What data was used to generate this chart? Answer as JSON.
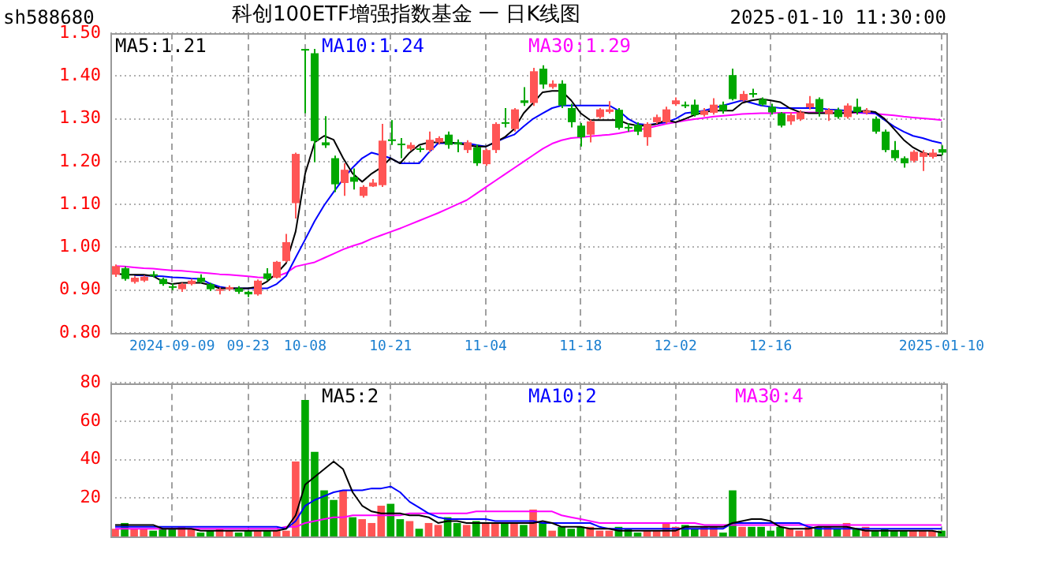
{
  "chart_data": [
    {
      "type": "candlestick",
      "title": "科创100ETF增强指数基金 一 日K线图",
      "subtitle": "2025-01-10 11:30:00",
      "annotations": [
        "sh588680"
      ],
      "categories": [
        null,
        null,
        null,
        null,
        null,
        null,
        "2024-09-09",
        null,
        null,
        null,
        null,
        null,
        null,
        null,
        "09-23",
        null,
        null,
        null,
        null,
        null,
        "10-08",
        null,
        null,
        null,
        null,
        null,
        null,
        null,
        null,
        "10-21",
        null,
        null,
        null,
        null,
        null,
        null,
        null,
        null,
        null,
        "11-04",
        null,
        null,
        null,
        null,
        null,
        null,
        null,
        null,
        null,
        "11-18",
        null,
        null,
        null,
        null,
        null,
        null,
        null,
        null,
        null,
        "12-02",
        null,
        null,
        null,
        null,
        null,
        null,
        null,
        null,
        null,
        "12-16",
        null,
        null,
        null,
        null,
        null,
        null,
        null,
        null,
        null,
        null,
        null,
        null,
        null,
        null,
        null,
        null,
        null,
        "2025-01-10"
      ],
      "ohlc": [
        [
          0.936,
          0.96,
          0.931,
          0.956
        ],
        [
          0.951,
          0.955,
          0.922,
          0.926
        ],
        [
          0.919,
          0.932,
          0.915,
          0.929
        ],
        [
          0.922,
          0.934,
          0.919,
          0.931
        ],
        [
          0.937,
          0.944,
          0.93,
          0.936
        ],
        [
          0.926,
          0.929,
          0.91,
          0.914
        ],
        [
          0.909,
          0.915,
          0.9,
          0.908
        ],
        [
          0.902,
          0.917,
          0.896,
          0.914
        ],
        [
          0.914,
          0.926,
          0.911,
          0.922
        ],
        [
          0.929,
          0.937,
          0.916,
          0.919
        ],
        [
          0.914,
          0.917,
          0.898,
          0.902
        ],
        [
          0.9,
          0.906,
          0.89,
          0.902
        ],
        [
          0.902,
          0.911,
          0.898,
          0.907
        ],
        [
          0.904,
          0.909,
          0.891,
          0.896
        ],
        [
          0.896,
          0.898,
          0.884,
          0.89
        ],
        [
          0.89,
          0.925,
          0.887,
          0.922
        ],
        [
          0.939,
          0.951,
          0.922,
          0.926
        ],
        [
          0.929,
          0.968,
          0.927,
          0.966
        ],
        [
          0.968,
          1.031,
          0.965,
          1.012
        ],
        [
          1.103,
          1.221,
          1.067,
          1.218
        ],
        [
          1.463,
          1.463,
          1.313,
          1.462
        ],
        [
          1.453,
          1.463,
          1.199,
          1.248
        ],
        [
          1.245,
          1.306,
          1.232,
          1.238
        ],
        [
          1.208,
          1.214,
          1.129,
          1.147
        ],
        [
          1.15,
          1.196,
          1.12,
          1.181
        ],
        [
          1.164,
          1.184,
          1.135,
          1.153
        ],
        [
          1.12,
          1.145,
          1.116,
          1.141
        ],
        [
          1.142,
          1.159,
          1.141,
          1.151
        ],
        [
          1.145,
          1.288,
          1.141,
          1.249
        ],
        [
          1.252,
          1.297,
          1.239,
          1.248
        ],
        [
          1.242,
          1.255,
          1.208,
          1.239
        ],
        [
          1.23,
          1.245,
          1.226,
          1.239
        ],
        [
          1.231,
          1.236,
          1.222,
          1.228
        ],
        [
          1.227,
          1.27,
          1.222,
          1.251
        ],
        [
          1.245,
          1.259,
          1.24,
          1.255
        ],
        [
          1.263,
          1.27,
          1.23,
          1.239
        ],
        [
          1.245,
          1.252,
          1.222,
          1.24
        ],
        [
          1.227,
          1.25,
          1.22,
          1.245
        ],
        [
          1.233,
          1.24,
          1.19,
          1.196
        ],
        [
          1.194,
          1.23,
          1.19,
          1.227
        ],
        [
          1.227,
          1.292,
          1.22,
          1.288
        ],
        [
          1.292,
          1.325,
          1.28,
          1.289
        ],
        [
          1.276,
          1.325,
          1.27,
          1.322
        ],
        [
          1.343,
          1.374,
          1.33,
          1.337
        ],
        [
          1.337,
          1.419,
          1.33,
          1.411
        ],
        [
          1.417,
          1.425,
          1.37,
          1.38
        ],
        [
          1.374,
          1.39,
          1.37,
          1.382
        ],
        [
          1.382,
          1.39,
          1.325,
          1.331
        ],
        [
          1.325,
          1.335,
          1.28,
          1.292
        ],
        [
          1.284,
          1.29,
          1.235,
          1.257
        ],
        [
          1.263,
          1.298,
          1.245,
          1.294
        ],
        [
          1.304,
          1.325,
          1.3,
          1.322
        ],
        [
          1.316,
          1.341,
          1.312,
          1.322
        ],
        [
          1.321,
          1.325,
          1.275,
          1.279
        ],
        [
          1.281,
          1.29,
          1.27,
          1.279
        ],
        [
          1.286,
          1.292,
          1.262,
          1.27
        ],
        [
          1.257,
          1.292,
          1.237,
          1.288
        ],
        [
          1.292,
          1.31,
          1.288,
          1.304
        ],
        [
          1.292,
          1.328,
          1.288,
          1.322
        ],
        [
          1.334,
          1.35,
          1.33,
          1.343
        ],
        [
          1.333,
          1.34,
          1.325,
          1.331
        ],
        [
          1.333,
          1.345,
          1.305,
          1.309
        ],
        [
          1.309,
          1.325,
          1.305,
          1.319
        ],
        [
          1.314,
          1.348,
          1.31,
          1.333
        ],
        [
          1.333,
          1.34,
          1.312,
          1.319
        ],
        [
          1.402,
          1.417,
          1.343,
          1.346
        ],
        [
          1.343,
          1.365,
          1.34,
          1.358
        ],
        [
          1.36,
          1.37,
          1.35,
          1.357
        ],
        [
          1.346,
          1.35,
          1.33,
          1.333
        ],
        [
          1.328,
          1.335,
          1.31,
          1.315
        ],
        [
          1.313,
          1.316,
          1.28,
          1.284
        ],
        [
          1.294,
          1.315,
          1.286,
          1.309
        ],
        [
          1.299,
          1.32,
          1.295,
          1.315
        ],
        [
          1.327,
          1.353,
          1.322,
          1.336
        ],
        [
          1.346,
          1.35,
          1.305,
          1.316
        ],
        [
          1.311,
          1.325,
          1.295,
          1.321
        ],
        [
          1.321,
          1.326,
          1.3,
          1.304
        ],
        [
          1.304,
          1.336,
          1.3,
          1.331
        ],
        [
          1.328,
          1.347,
          1.31,
          1.316
        ],
        [
          1.314,
          1.325,
          1.31,
          1.319
        ],
        [
          1.3,
          1.305,
          1.265,
          1.27
        ],
        [
          1.27,
          1.275,
          1.222,
          1.227
        ],
        [
          1.227,
          1.248,
          1.202,
          1.208
        ],
        [
          1.208,
          1.212,
          1.186,
          1.196
        ],
        [
          1.202,
          1.227,
          1.198,
          1.223
        ],
        [
          1.211,
          1.227,
          1.178,
          1.221
        ],
        [
          1.211,
          1.229,
          1.207,
          1.221
        ],
        [
          1.229,
          1.238,
          1.215,
          1.221
        ]
      ],
      "colors": [
        "#ff5555",
        "#00a800",
        "#ff5555",
        "#ff5555",
        "#00a800",
        "#00a800",
        "#00a800",
        "#ff5555",
        "#ff5555",
        "#00a800",
        "#00a800",
        "#ff5555",
        "#ff5555",
        "#00a800",
        "#00a800",
        "#ff5555",
        "#00a800",
        "#ff5555",
        "#ff5555",
        "#ff5555",
        "#00a800",
        "#00a800",
        "#00a800",
        "#00a800",
        "#ff5555",
        "#00a800",
        "#ff5555",
        "#ff5555",
        "#ff5555",
        "#00a800",
        "#00a800",
        "#ff5555",
        "#00a800",
        "#ff5555",
        "#ff5555",
        "#00a800",
        "#00a800",
        "#ff5555",
        "#00a800",
        "#ff5555",
        "#ff5555",
        "#00a800",
        "#ff5555",
        "#00a800",
        "#ff5555",
        "#00a800",
        "#ff5555",
        "#00a800",
        "#00a800",
        "#00a800",
        "#ff5555",
        "#ff5555",
        "#ff5555",
        "#00a800",
        "#00a800",
        "#00a800",
        "#ff5555",
        "#ff5555",
        "#ff5555",
        "#ff5555",
        "#00a800",
        "#00a800",
        "#ff5555",
        "#ff5555",
        "#00a800",
        "#00a800",
        "#ff5555",
        "#00a800",
        "#00a800",
        "#00a800",
        "#00a800",
        "#ff5555",
        "#ff5555",
        "#ff5555",
        "#00a800",
        "#ff5555",
        "#00a800",
        "#ff5555",
        "#00a800",
        "#ff5555",
        "#00a800",
        "#00a800",
        "#00a800",
        "#00a800",
        "#ff5555",
        "#ff5555",
        "#ff5555",
        "#00a800"
      ],
      "series": [
        {
          "type": "line",
          "name": "MA5:1.21",
          "color": "#000000",
          "values": [
            0.939,
            0.936,
            0.936,
            0.936,
            0.933,
            0.92,
            0.914,
            0.917,
            0.917,
            0.917,
            0.912,
            0.904,
            0.904,
            0.904,
            0.904,
            0.908,
            0.92,
            0.939,
            0.963,
            1.037,
            1.172,
            1.245,
            1.26,
            1.251,
            1.208,
            1.172,
            1.153,
            1.172,
            1.186,
            1.208,
            1.196,
            1.221,
            1.239,
            1.245,
            1.245,
            1.245,
            1.243,
            1.239,
            1.235,
            1.235,
            1.245,
            1.257,
            1.276,
            1.313,
            1.337,
            1.362,
            1.365,
            1.365,
            1.343,
            1.313,
            1.297,
            1.297,
            1.297,
            1.297,
            1.288,
            1.284,
            1.284,
            1.288,
            1.297,
            1.292,
            1.3,
            1.309,
            1.316,
            1.319,
            1.319,
            1.319,
            1.337,
            1.343,
            1.346,
            1.343,
            1.339,
            1.325,
            1.316,
            1.313,
            1.313,
            1.313,
            1.313,
            1.313,
            1.316,
            1.319,
            1.316,
            1.3,
            1.276,
            1.251,
            1.233,
            1.221,
            1.215,
            1.215
          ]
        },
        {
          "type": "line",
          "name": "MA10:1.24",
          "color": "#0000ff",
          "values": [
            null,
            null,
            0.935,
            0.934,
            0.933,
            0.932,
            0.93,
            0.929,
            0.927,
            0.926,
            0.915,
            0.908,
            0.904,
            0.904,
            0.904,
            0.904,
            0.904,
            0.914,
            0.933,
            0.976,
            1.018,
            1.061,
            1.098,
            1.129,
            1.159,
            1.186,
            1.208,
            1.221,
            1.215,
            1.208,
            1.196,
            1.196,
            1.196,
            1.221,
            1.243,
            1.243,
            1.243,
            1.243,
            1.239,
            1.235,
            1.245,
            1.255,
            1.263,
            1.282,
            1.3,
            1.313,
            1.325,
            1.331,
            1.331,
            1.331,
            1.331,
            1.331,
            1.331,
            1.319,
            1.3,
            1.288,
            1.286,
            1.288,
            1.292,
            1.3,
            1.313,
            1.316,
            1.319,
            1.325,
            1.331,
            1.337,
            1.343,
            1.337,
            1.331,
            1.328,
            1.325,
            1.325,
            1.325,
            1.325,
            1.325,
            1.322,
            1.321,
            1.319,
            1.316,
            1.315,
            1.313,
            1.297,
            1.282,
            1.27,
            1.26,
            1.255,
            1.248,
            1.243
          ]
        },
        {
          "type": "line",
          "name": "MA30:1.29",
          "color": "#ff00ff",
          "values": [
            0.956,
            0.955,
            0.953,
            0.951,
            0.95,
            0.948,
            0.946,
            0.945,
            0.943,
            0.941,
            0.939,
            0.937,
            0.936,
            0.934,
            0.932,
            0.93,
            0.929,
            0.932,
            0.94,
            0.955,
            0.96,
            0.965,
            0.975,
            0.985,
            0.995,
            1.003,
            1.01,
            1.02,
            1.028,
            1.036,
            1.044,
            1.053,
            1.062,
            1.071,
            1.08,
            1.09,
            1.1,
            1.11,
            1.125,
            1.14,
            1.155,
            1.17,
            1.185,
            1.2,
            1.215,
            1.23,
            1.242,
            1.25,
            1.255,
            1.257,
            1.259,
            1.261,
            1.263,
            1.266,
            1.27,
            1.274,
            1.278,
            1.283,
            1.288,
            1.292,
            1.296,
            1.299,
            1.302,
            1.305,
            1.307,
            1.309,
            1.311,
            1.312,
            1.313,
            1.313,
            1.314,
            1.314,
            1.314,
            1.315,
            1.315,
            1.315,
            1.315,
            1.315,
            1.314,
            1.313,
            1.312,
            1.31,
            1.308,
            1.305,
            1.303,
            1.301,
            1.299,
            1.297
          ]
        }
      ],
      "ylim": [
        0.8,
        1.5
      ],
      "yticks": [
        {
          "value": 0.8,
          "label": "0.80"
        },
        {
          "value": 0.9,
          "label": "0.90"
        },
        {
          "value": 1.0,
          "label": "1.00"
        },
        {
          "value": 1.1,
          "label": "1.10"
        },
        {
          "value": 1.2,
          "label": "1.20"
        },
        {
          "value": 1.3,
          "label": "1.30"
        },
        {
          "value": 1.4,
          "label": "1.40"
        },
        {
          "value": 1.5,
          "label": "1.50"
        }
      ],
      "grid": true,
      "legend": "top"
    },
    {
      "type": "bar",
      "tick_labels": "y",
      "categories": [
        null,
        null,
        null,
        null,
        null,
        null,
        null,
        null,
        null,
        null,
        null,
        null,
        null,
        null,
        null,
        null,
        null,
        null,
        null,
        null,
        null,
        null,
        null,
        null,
        null,
        null,
        null,
        null,
        null,
        null,
        null,
        null,
        null,
        null,
        null,
        null,
        null,
        null,
        null,
        null,
        null,
        null,
        null,
        null,
        null,
        null,
        null,
        null,
        null,
        null,
        null,
        null,
        null,
        null,
        null,
        null,
        null,
        null,
        null,
        null,
        null,
        null,
        null,
        null,
        null,
        null,
        null,
        null,
        null,
        null,
        null,
        null,
        null,
        null,
        null,
        null,
        null,
        null,
        null,
        null,
        null,
        null,
        null,
        null,
        null,
        null,
        null,
        null
      ],
      "series": [
        {
          "type": "bar",
          "colors": [
            "#ff5555",
            "#00a800",
            "#ff5555",
            "#ff5555",
            "#00a800",
            "#00a800",
            "#00a800",
            "#ff5555",
            "#ff5555",
            "#00a800",
            "#00a800",
            "#ff5555",
            "#ff5555",
            "#00a800",
            "#00a800",
            "#ff5555",
            "#00a800",
            "#ff5555",
            "#ff5555",
            "#ff5555",
            "#00a800",
            "#00a800",
            "#00a800",
            "#00a800",
            "#ff5555",
            "#00a800",
            "#ff5555",
            "#ff5555",
            "#ff5555",
            "#00a800",
            "#00a800",
            "#ff5555",
            "#00a800",
            "#ff5555",
            "#ff5555",
            "#00a800",
            "#00a800",
            "#ff5555",
            "#00a800",
            "#ff5555",
            "#ff5555",
            "#00a800",
            "#ff5555",
            "#00a800",
            "#ff5555",
            "#00a800",
            "#ff5555",
            "#00a800",
            "#00a800",
            "#00a800",
            "#ff5555",
            "#ff5555",
            "#ff5555",
            "#00a800",
            "#00a800",
            "#00a800",
            "#ff5555",
            "#ff5555",
            "#ff5555",
            "#ff5555",
            "#00a800",
            "#00a800",
            "#ff5555",
            "#ff5555",
            "#00a800",
            "#00a800",
            "#ff5555",
            "#00a800",
            "#00a800",
            "#00a800",
            "#00a800",
            "#ff5555",
            "#ff5555",
            "#ff5555",
            "#00a800",
            "#ff5555",
            "#00a800",
            "#ff5555",
            "#00a800",
            "#ff5555",
            "#00a800",
            "#00a800",
            "#00a800",
            "#00a800",
            "#ff5555",
            "#ff5555",
            "#ff5555",
            "#00a800"
          ],
          "values": [
            4,
            7,
            4,
            4,
            3,
            4,
            4,
            5,
            4,
            2,
            3,
            4,
            3,
            2,
            3,
            3,
            3,
            3,
            3,
            39,
            71,
            44,
            24,
            19,
            24,
            10,
            9,
            7,
            16,
            17,
            9,
            8,
            4,
            7,
            6,
            10,
            7,
            6,
            8,
            7,
            7,
            7,
            7,
            6,
            14,
            7,
            3,
            5,
            4,
            5,
            5,
            3,
            3,
            5,
            4,
            2,
            3,
            3,
            7,
            5,
            6,
            4,
            5,
            5,
            2,
            24,
            5,
            5,
            5,
            3,
            5,
            4,
            3,
            5,
            5,
            5,
            4,
            7,
            4,
            5,
            3,
            4,
            3,
            3,
            3,
            3,
            3,
            3
          ]
        },
        {
          "type": "line",
          "name": "MA5:2",
          "color": "#000000",
          "values": [
            6,
            6,
            6,
            6,
            6,
            4,
            4,
            4,
            4,
            3,
            3,
            3,
            3,
            3,
            3,
            3,
            3,
            3,
            4,
            11,
            27,
            31,
            35,
            39,
            35,
            23,
            16,
            13,
            12,
            12,
            12,
            11,
            11,
            10,
            7,
            8,
            8,
            7,
            7,
            7,
            7,
            7,
            7,
            7,
            7,
            8,
            7,
            5,
            5,
            5,
            4,
            4,
            4,
            3,
            3,
            3,
            3,
            3,
            3,
            3,
            5,
            5,
            5,
            5,
            5,
            7,
            8,
            9,
            9,
            8,
            5,
            4,
            4,
            4,
            5,
            5,
            5,
            5,
            4,
            3,
            3,
            3,
            3,
            3,
            3,
            3,
            3,
            2
          ]
        },
        {
          "type": "line",
          "name": "MA10:2",
          "color": "#0000ff",
          "values": [
            5,
            5,
            5,
            5,
            5,
            5,
            5,
            5,
            5,
            5,
            5,
            5,
            5,
            5,
            5,
            5,
            5,
            5,
            4,
            8,
            16,
            19,
            21,
            23,
            24,
            24,
            24,
            25,
            25,
            26,
            23,
            18,
            15,
            12,
            10,
            9,
            9,
            9,
            9,
            9,
            8,
            8,
            8,
            8,
            8,
            7,
            7,
            7,
            7,
            7,
            7,
            5,
            4,
            4,
            4,
            4,
            4,
            4,
            4,
            4,
            4,
            4,
            4,
            4,
            4,
            7,
            7,
            7,
            7,
            7,
            7,
            7,
            7,
            5,
            4,
            4,
            4,
            4,
            4,
            4,
            4,
            4,
            4,
            4,
            4,
            4,
            4,
            4
          ]
        },
        {
          "type": "line",
          "name": "MA30:4",
          "color": "#ff00ff",
          "values": [
            4,
            4,
            4,
            4,
            4,
            4,
            4,
            4,
            4,
            4,
            4,
            4,
            4,
            4,
            4,
            4,
            4,
            4,
            5,
            5,
            7,
            8,
            9,
            10,
            10,
            11,
            11,
            11,
            11,
            11,
            11,
            12,
            12,
            12,
            12,
            12,
            12,
            12,
            13,
            13,
            13,
            13,
            13,
            13,
            13,
            13,
            13,
            11,
            10,
            9,
            8,
            7,
            7,
            7,
            7,
            7,
            7,
            7,
            7,
            7,
            7,
            7,
            6,
            6,
            6,
            6,
            6,
            6,
            6,
            6,
            6,
            6,
            6,
            6,
            6,
            6,
            6,
            6,
            6,
            6,
            6,
            6,
            6,
            6,
            6,
            6,
            6,
            6
          ]
        }
      ],
      "ylim": [
        0,
        80
      ],
      "yticks": [
        20,
        40,
        60,
        80
      ],
      "grid": true,
      "legend": "top"
    }
  ]
}
